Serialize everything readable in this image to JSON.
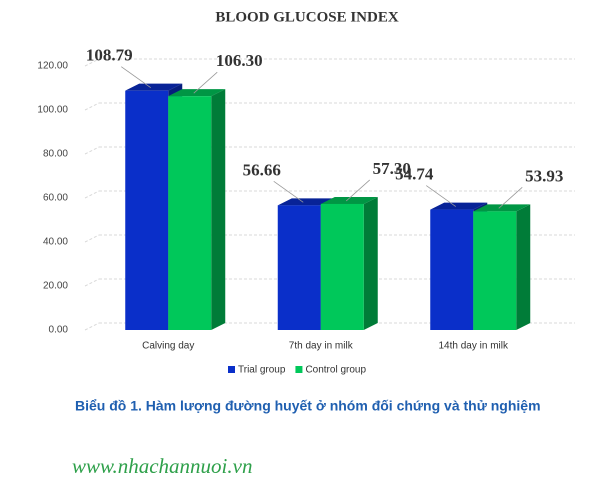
{
  "chart_data": {
    "type": "bar3d",
    "title": "BLOOD GLUCOSE INDEX",
    "categories": [
      "Calving day",
      "7th day in milk",
      "14th day in milk"
    ],
    "series": [
      {
        "name": "Trial group",
        "color": "#0a2fc9",
        "values": [
          108.79,
          56.66,
          54.74
        ],
        "value_labels": [
          "108.79",
          "56.66",
          "54.74"
        ]
      },
      {
        "name": "Control group",
        "color": "#00c85a",
        "values": [
          106.3,
          57.3,
          53.93
        ],
        "value_labels": [
          "106.30",
          "57.30",
          "53.93"
        ]
      }
    ],
    "ylim": [
      0,
      120
    ],
    "yticks": [
      {
        "value": 0,
        "label": "0.00"
      },
      {
        "value": 20,
        "label": "20.00"
      },
      {
        "value": 40,
        "label": "40.00"
      },
      {
        "value": 60,
        "label": "60.00"
      },
      {
        "value": 80,
        "label": "80.00"
      },
      {
        "value": 100,
        "label": "100.00"
      },
      {
        "value": 120,
        "label": "120.00"
      }
    ],
    "grid": true,
    "legend": "bottom"
  },
  "caption": "Biểu đồ 1. Hàm lượng đường huyết ở nhóm đối chứng và thử nghiệm",
  "website": "www.nhachannuoi.vn"
}
